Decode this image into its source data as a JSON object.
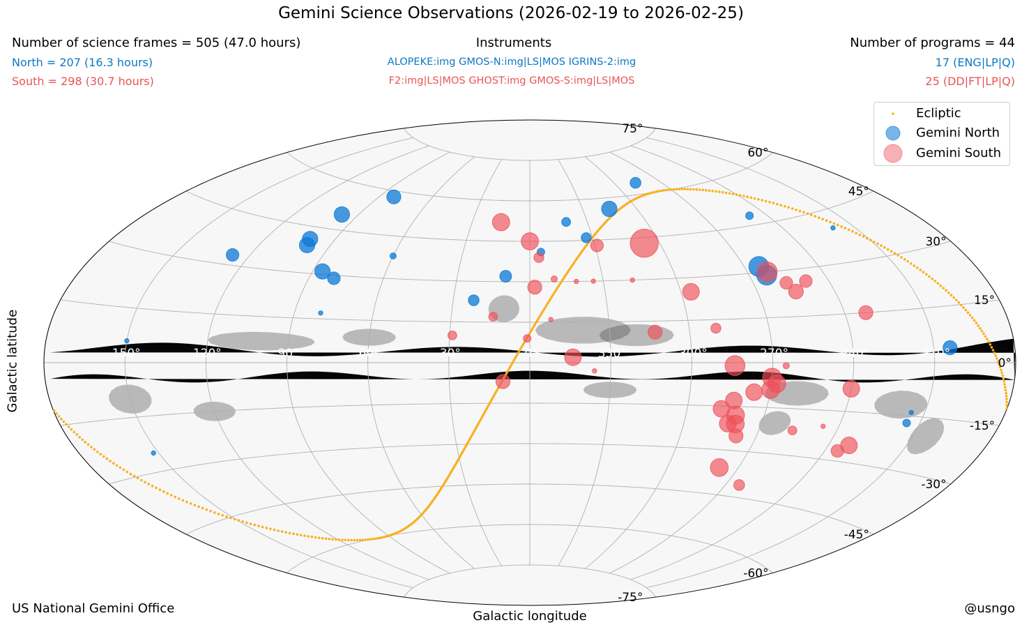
{
  "title": "Gemini Science Observations (2026-02-19 to 2026-02-25)",
  "header": {
    "frames_total": "Number of science frames = 505 (47.0 hours)",
    "frames_north": "North = 207 (16.3 hours)",
    "frames_south": "South = 298 (30.7 hours)",
    "instruments_title": "Instruments",
    "instruments_north": "ALOPEKE:img GMOS-N:img|LS|MOS IGRINS-2:img",
    "instruments_south": "F2:img|LS|MOS GHOST:img GMOS-S:img|LS|MOS",
    "programs_total": "Number of programs = 44",
    "programs_north": "17 (ENG|LP|Q)",
    "programs_south": "25 (DD|FT|LP|Q)"
  },
  "footer": {
    "left": "US National Gemini Office",
    "right": "@usngo"
  },
  "colors": {
    "north": "#0b78d6",
    "south": "#ee4f57",
    "ecliptic": "#f8b020",
    "north_text": "#0b78c2",
    "south_text": "#ea5455"
  },
  "chart_data": {
    "type": "scatter",
    "projection": "aitoff",
    "title": "Gemini Science Observations (2026-02-19 to 2026-02-25)",
    "xlabel": "Galactic longitude",
    "ylabel": "Galactic latitude",
    "x_ticks": [
      "150°",
      "120°",
      "90°",
      "60°",
      "30°",
      "0°",
      "330°",
      "300°",
      "270°",
      "240°",
      "210°"
    ],
    "y_ticks": [
      "75°",
      "60°",
      "45°",
      "30°",
      "15°",
      "0°",
      "-15°",
      "-30°",
      "-45°",
      "-60°",
      "-75°"
    ],
    "legend": {
      "placement": "top-right",
      "entries": [
        "Ecliptic",
        "Gemini North",
        "Gemini South"
      ]
    },
    "grid": true,
    "ecliptic": true,
    "series": [
      {
        "name": "Gemini North",
        "points": [
          {
            "l": 82,
            "b": 58,
            "n": 10
          },
          {
            "l": 98,
            "b": 50,
            "n": 12
          },
          {
            "l": 101,
            "b": 41,
            "n": 12
          },
          {
            "l": 100,
            "b": 39,
            "n": 12
          },
          {
            "l": 127,
            "b": 33,
            "n": 8
          },
          {
            "l": 86,
            "b": 31,
            "n": 12
          },
          {
            "l": 80,
            "b": 29,
            "n": 8
          },
          {
            "l": 60,
            "b": 38,
            "n": 2
          },
          {
            "l": 10,
            "b": 32,
            "n": 7
          },
          {
            "l": 22,
            "b": 23,
            "n": 6
          },
          {
            "l": 80,
            "b": 17,
            "n": 1
          },
          {
            "l": 341,
            "b": 52,
            "n": 4
          },
          {
            "l": 333,
            "b": 46,
            "n": 5
          },
          {
            "l": 315,
            "b": 56,
            "n": 12
          },
          {
            "l": 286,
            "b": 64,
            "n": 6
          },
          {
            "l": 248,
            "b": 48,
            "n": 3
          },
          {
            "l": 264,
            "b": 32,
            "n": 20
          },
          {
            "l": 263,
            "b": 29,
            "n": 20
          },
          {
            "l": 355,
            "b": 41,
            "n": 3
          },
          {
            "l": 219,
            "b": 40,
            "n": 1
          },
          {
            "l": 204,
            "b": 4,
            "n": 10
          },
          {
            "l": 150,
            "b": 6,
            "n": 1
          },
          {
            "l": 152,
            "b": -25,
            "n": 1
          },
          {
            "l": 215,
            "b": -14,
            "n": 1
          },
          {
            "l": 215,
            "b": -17,
            "n": 3
          }
        ]
      },
      {
        "name": "Gemini South",
        "points": [
          {
            "l": 15,
            "b": 52,
            "n": 15
          },
          {
            "l": 0,
            "b": 45,
            "n": 15
          },
          {
            "l": 356,
            "b": 39,
            "n": 5
          },
          {
            "l": 350,
            "b": 31,
            "n": 2
          },
          {
            "l": 341,
            "b": 30,
            "n": 1
          },
          {
            "l": 334,
            "b": 30,
            "n": 1
          },
          {
            "l": 358,
            "b": 28,
            "n": 10
          },
          {
            "l": 329,
            "b": 43,
            "n": 8
          },
          {
            "l": 307,
            "b": 43,
            "n": 40
          },
          {
            "l": 318,
            "b": 30,
            "n": 1
          },
          {
            "l": 296,
            "b": 25,
            "n": 14
          },
          {
            "l": 262,
            "b": 30,
            "n": 20
          },
          {
            "l": 257,
            "b": 26,
            "n": 8
          },
          {
            "l": 255,
            "b": 23,
            "n": 11
          },
          {
            "l": 249,
            "b": 26,
            "n": 8
          },
          {
            "l": 232,
            "b": 15,
            "n": 10
          },
          {
            "l": 14,
            "b": 17,
            "n": 4
          },
          {
            "l": 352,
            "b": 16,
            "n": 1
          },
          {
            "l": 313,
            "b": 11,
            "n": 10
          },
          {
            "l": 290,
            "b": 12,
            "n": 5
          },
          {
            "l": 29,
            "b": 10,
            "n": 4
          },
          {
            "l": 1,
            "b": 9,
            "n": 3
          },
          {
            "l": 344,
            "b": 2,
            "n": 14
          },
          {
            "l": 284,
            "b": -1,
            "n": 20
          },
          {
            "l": 265,
            "b": -1,
            "n": 2
          },
          {
            "l": 336,
            "b": -3,
            "n": 1
          },
          {
            "l": 270,
            "b": -5,
            "n": 18
          },
          {
            "l": 268,
            "b": -7,
            "n": 16
          },
          {
            "l": 270,
            "b": -9,
            "n": 16
          },
          {
            "l": 276,
            "b": -10,
            "n": 14
          },
          {
            "l": 10,
            "b": -7,
            "n": 10
          },
          {
            "l": 240,
            "b": -8,
            "n": 14
          },
          {
            "l": 283,
            "b": -13,
            "n": 14
          },
          {
            "l": 287,
            "b": -16,
            "n": 14
          },
          {
            "l": 281,
            "b": -18,
            "n": 16
          },
          {
            "l": 280,
            "b": -21,
            "n": 16
          },
          {
            "l": 283,
            "b": -21,
            "n": 14
          },
          {
            "l": 278,
            "b": -25,
            "n": 10
          },
          {
            "l": 257,
            "b": -22,
            "n": 4
          },
          {
            "l": 246,
            "b": -20,
            "n": 1
          },
          {
            "l": 232,
            "b": -25,
            "n": 14
          },
          {
            "l": 235,
            "b": -27,
            "n": 8
          },
          {
            "l": 278,
            "b": -36,
            "n": 16
          },
          {
            "l": 264,
            "b": -41,
            "n": 6
          }
        ]
      }
    ]
  }
}
